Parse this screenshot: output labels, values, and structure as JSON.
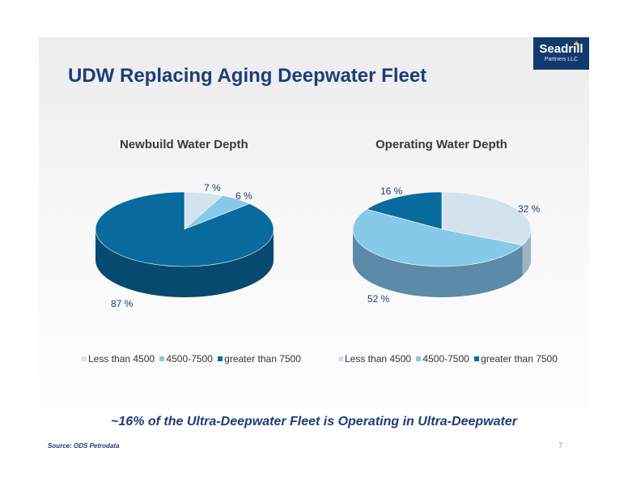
{
  "slide": {
    "title": "UDW Replacing Aging Deepwater Fleet",
    "tagline": "~16% of the Ultra-Deepwater Fleet is Operating in Ultra-Deepwater",
    "source": "Source: ODS Petrodata",
    "page_number": "7"
  },
  "logo": {
    "line1": "Seadrill",
    "line2": "Partners LLC"
  },
  "colors": {
    "less_than_4500": "#d3e3ee",
    "between_4500_7500": "#87c9e8",
    "greater_than_7500": "#086a9d",
    "title": "#1f3c78"
  },
  "chart_data": [
    {
      "type": "pie",
      "title": "Newbuild Water Depth",
      "categories": [
        "Less than 4500",
        "4500-7500",
        "greater than 7500"
      ],
      "values": [
        7,
        6,
        87
      ],
      "labels": [
        "7 %",
        "6 %",
        "87 %"
      ],
      "legend_position": "bottom"
    },
    {
      "type": "pie",
      "title": "Operating Water Depth",
      "categories": [
        "Less than 4500",
        "4500-7500",
        "greater than 7500"
      ],
      "values": [
        32,
        52,
        16
      ],
      "labels": [
        "32 %",
        "52 %",
        "16 %"
      ],
      "legend_position": "bottom"
    }
  ]
}
